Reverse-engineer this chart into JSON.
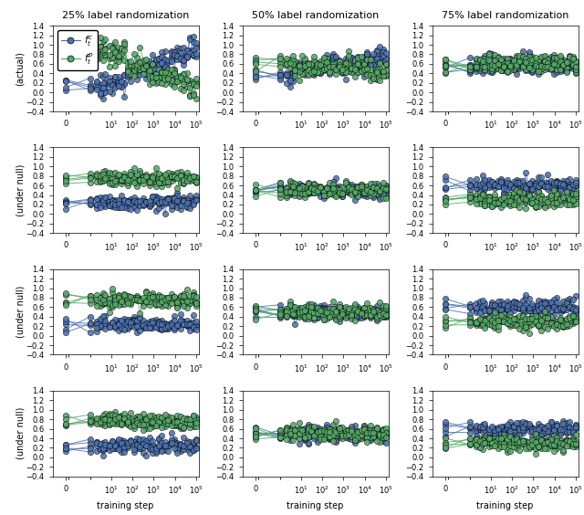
{
  "titles_col": [
    "25% label randomization",
    "50% label randomization",
    "75% label randomization"
  ],
  "row_ylabels": [
    "(actual)",
    "(under null)",
    "(under null)",
    "(under null)"
  ],
  "xlabel": "training step",
  "legend_label_c": "$f_t^c$",
  "legend_label_p": "$f_t^p$",
  "blue_color": "#4c72b0",
  "green_color": "#55a868",
  "ylim": [
    -0.4,
    1.4
  ],
  "yticks": [
    -0.4,
    -0.2,
    0.0,
    0.2,
    0.4,
    0.6,
    0.8,
    1.0,
    1.2,
    1.4
  ],
  "nrows": 4,
  "ncols": 3,
  "n_runs": 5,
  "n_points_log": 35
}
